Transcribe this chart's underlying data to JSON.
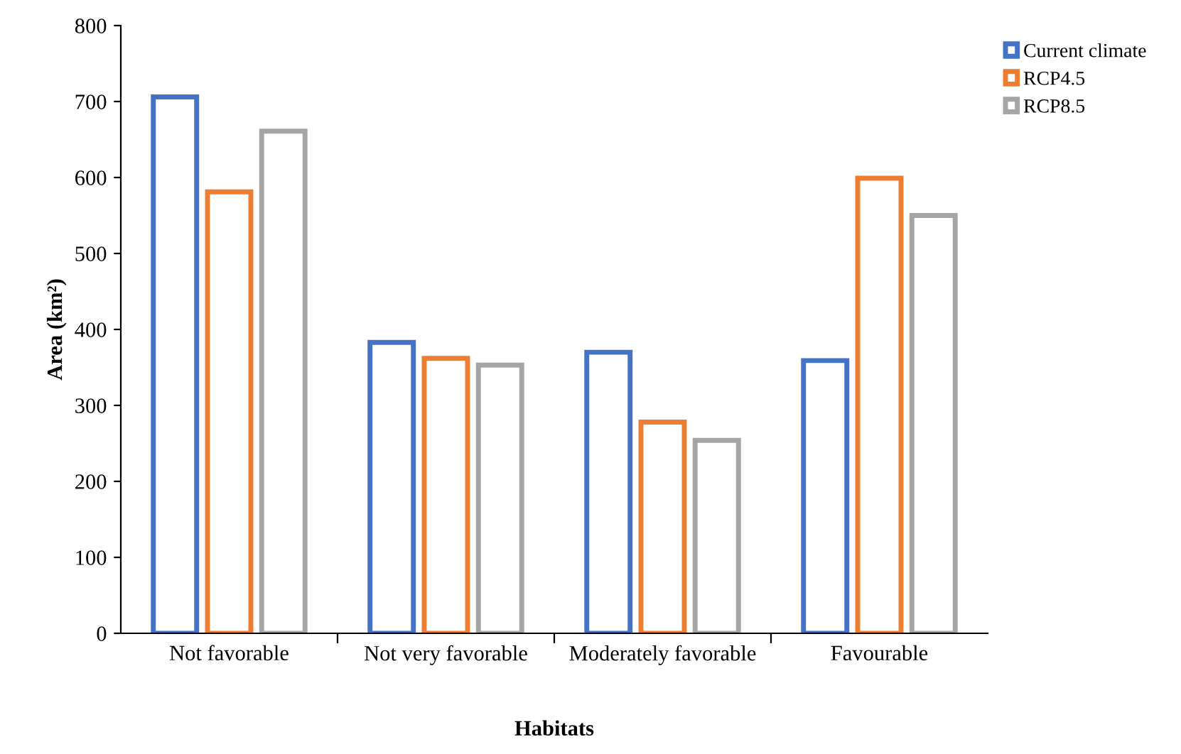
{
  "chart_data": {
    "type": "bar",
    "xlabel": "Habitats",
    "ylabel": "Area (km²)",
    "categories": [
      "Not favorable",
      "Not very favorable",
      "Moderately favorable",
      "Favourable"
    ],
    "series": [
      {
        "name": "Current climate",
        "color": "#4472c4",
        "values": [
          706,
          383,
          370,
          359
        ]
      },
      {
        "name": "RCP4.5",
        "color": "#ed7d31",
        "values": [
          581,
          362,
          278,
          599
        ]
      },
      {
        "name": "RCP8.5",
        "color": "#a5a5a5",
        "values": [
          661,
          353,
          254,
          550
        ]
      }
    ],
    "ylim": [
      0,
      800
    ],
    "yticks": [
      0,
      100,
      200,
      300,
      400,
      500,
      600,
      700,
      800
    ],
    "grid": false,
    "legend": "top right"
  }
}
